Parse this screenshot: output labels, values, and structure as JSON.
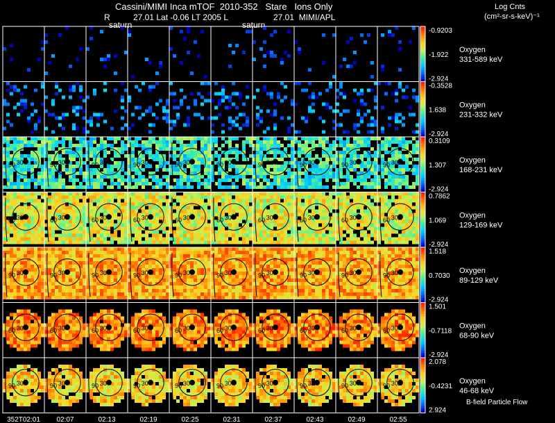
{
  "header": {
    "title": "Cassini/MIMI Inca mTOF  2010-352   Stare   Ions Only",
    "info_r_label": "R",
    "info_values": "27.01 Lat -0.06 LT 2005 L",
    "info_tail": "27.01  MIMI/APL",
    "saturn_label_1": "saturn",
    "saturn_label_2": "saturn",
    "units_line1": "Log Cnts",
    "units_line2": "(cm²-sr-s-keV)⁻¹"
  },
  "footer": {
    "bfield_label": "B-field Particle Flow"
  },
  "chart_data": {
    "type": "heatmap",
    "title": "Cassini/MIMI Inca mTOF  2010-352   Stare   Ions Only",
    "x": [
      "352T02:01",
      "02:07",
      "02:13",
      "02:19",
      "02:25",
      "02:31",
      "02:37",
      "02:43",
      "02:49",
      "02:55"
    ],
    "contour_labels": [
      "30",
      "60",
      "90"
    ],
    "colorscale": [
      "#ff0000",
      "#ff8000",
      "#ffff00",
      "#00ff80",
      "#00c0ff",
      "#0000ff",
      "#ff00ff"
    ],
    "rows": [
      {
        "species": "Oxygen",
        "energy": "331-589 keV",
        "max": "-0.9203",
        "mid": "-1.922",
        "min": "-2.924",
        "density": 0.05,
        "level": 0.05
      },
      {
        "species": "Oxygen",
        "energy": "231-332 keV",
        "max": "-0.3528",
        "mid": "1.638",
        "min": "-2.924",
        "density": 0.2,
        "level": 0.15
      },
      {
        "species": "Oxygen",
        "energy": "168-231 keV",
        "max": "0.3109",
        "mid": "1.307",
        "min": "-2.924",
        "density": 0.75,
        "level": 0.4
      },
      {
        "species": "Oxygen",
        "energy": "129-169 keV",
        "max": "0.7862",
        "mid": "1.069",
        "min": "-2.924",
        "density": 0.92,
        "level": 0.62
      },
      {
        "species": "Oxygen",
        "energy": "89-129 keV",
        "max": "1.518",
        "mid": "0.7030",
        "min": "-2.924",
        "density": 1.0,
        "level": 0.78
      },
      {
        "species": "Oxygen",
        "energy": "68-90 keV",
        "max": "1.501",
        "mid": "-0.7118",
        "min": "-2.924",
        "density": 0.98,
        "level": 0.83
      },
      {
        "species": "Oxygen",
        "energy": "46-68 keV",
        "max": "2.078",
        "mid": "-0.4231",
        "min": "2.924",
        "density": 0.95,
        "level": 0.7
      }
    ]
  }
}
